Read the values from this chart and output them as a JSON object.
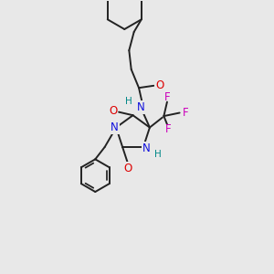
{
  "bg_color": "#e8e8e8",
  "bond_color": "#222222",
  "bond_width": 1.4,
  "atom_colors": {
    "N": "#1010dd",
    "O": "#dd0000",
    "F": "#cc00bb",
    "H": "#008888",
    "C": "#222222"
  },
  "fs": 8.5
}
